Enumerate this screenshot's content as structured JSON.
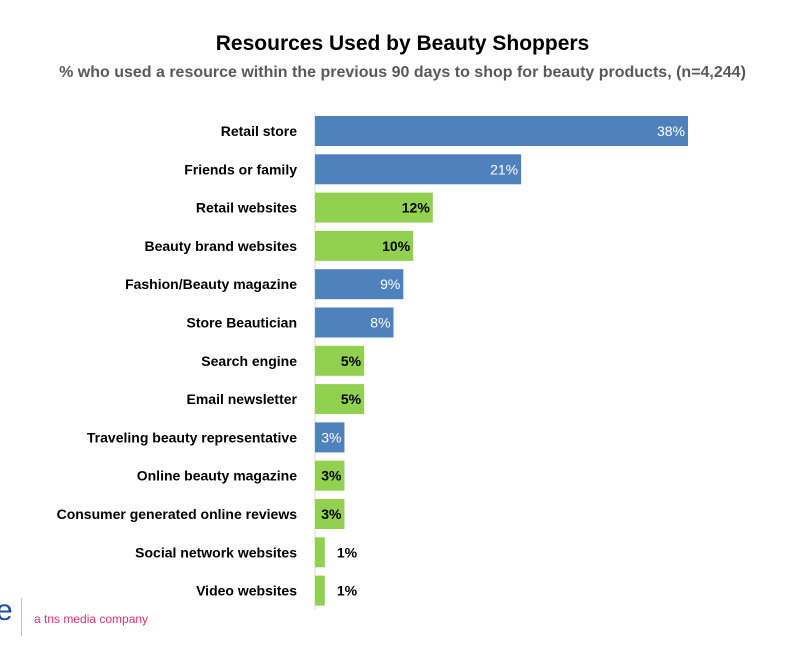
{
  "chart_data": {
    "type": "bar",
    "orientation": "horizontal",
    "title": "Resources Used by Beauty Shoppers",
    "subtitle": "% who used a resource within the previous 90 days to shop for beauty products, (n=4,244)",
    "categories": [
      "Retail store",
      "Friends or family",
      "Retail websites",
      "Beauty brand websites",
      "Fashion/Beauty magazine",
      "Store Beautician",
      "Search engine",
      "Email newsletter",
      "Traveling beauty representative",
      "Online beauty magazine",
      "Consumer generated online reviews",
      "Social network websites",
      "Video websites"
    ],
    "values": [
      38,
      21,
      12,
      10,
      9,
      8,
      5,
      5,
      3,
      3,
      3,
      1,
      1
    ],
    "labels": [
      "38%",
      "21%",
      "12%",
      "10%",
      "9%",
      "8%",
      "5%",
      "5%",
      "3%",
      "3%",
      "3%",
      "1%",
      "1%"
    ],
    "bar_colors": [
      "#4f81bd",
      "#4f81bd",
      "#92d050",
      "#92d050",
      "#4f81bd",
      "#4f81bd",
      "#92d050",
      "#92d050",
      "#4f81bd",
      "#92d050",
      "#92d050",
      "#92d050",
      "#92d050"
    ],
    "xlim": [
      0,
      38
    ],
    "grid": false
  },
  "footer": {
    "logo_glyph": "e",
    "tagline": "a tns media company"
  }
}
